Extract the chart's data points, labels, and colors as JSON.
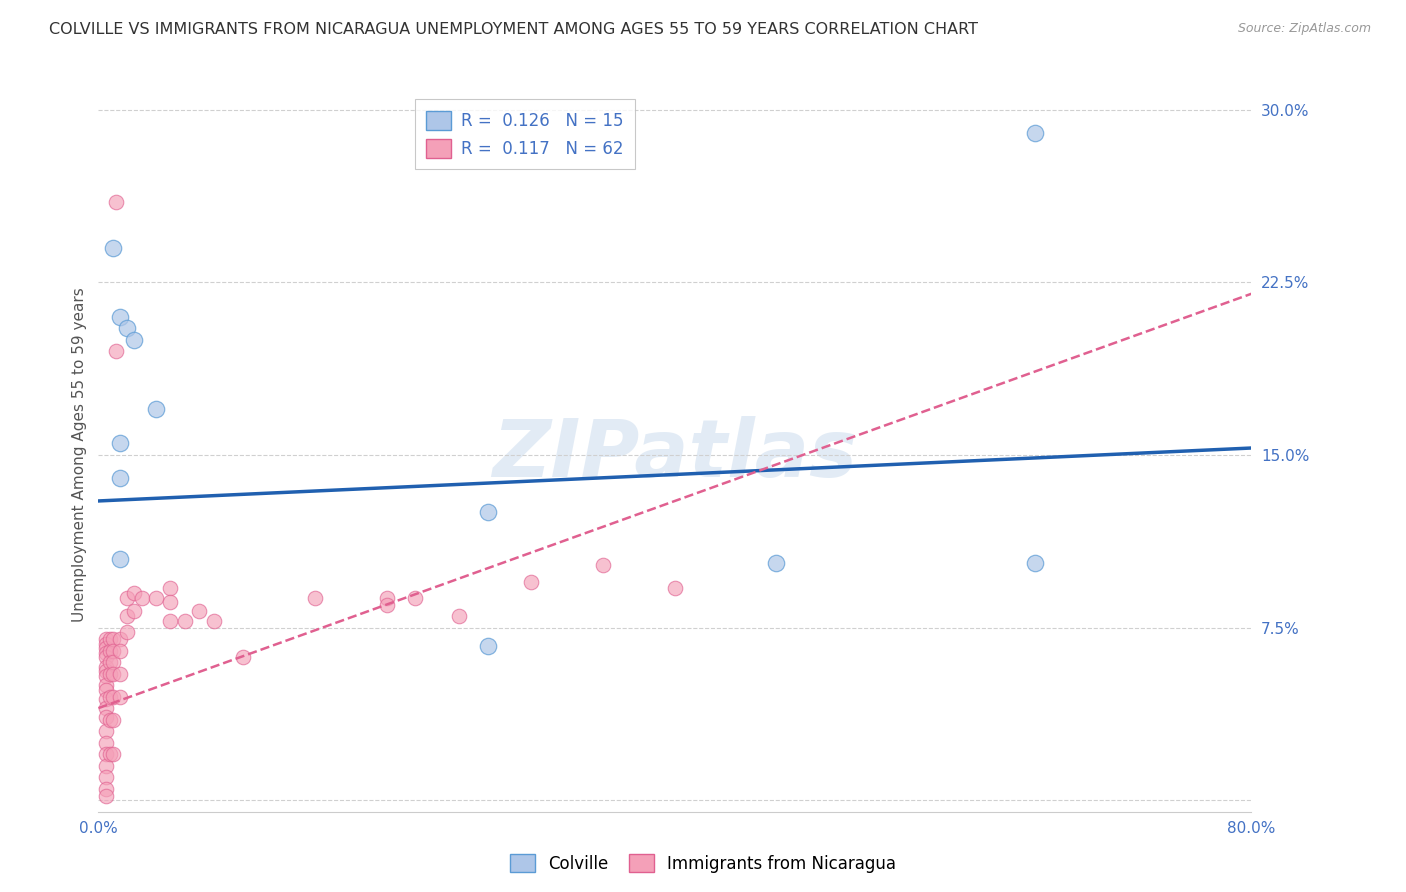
{
  "title": "COLVILLE VS IMMIGRANTS FROM NICARAGUA UNEMPLOYMENT AMONG AGES 55 TO 59 YEARS CORRELATION CHART",
  "source": "Source: ZipAtlas.com",
  "ylabel": "Unemployment Among Ages 55 to 59 years",
  "xlim": [
    0,
    0.8
  ],
  "ylim": [
    -0.005,
    0.305
  ],
  "yticks": [
    0.0,
    0.075,
    0.15,
    0.225,
    0.3
  ],
  "ytick_labels": [
    "",
    "7.5%",
    "15.0%",
    "22.5%",
    "30.0%"
  ],
  "xtick_positions": [
    0.0,
    0.1,
    0.2,
    0.3,
    0.4,
    0.5,
    0.6,
    0.7,
    0.8
  ],
  "xtick_labels": [
    "0.0%",
    "",
    "",
    "",
    "",
    "",
    "",
    "",
    "80.0%"
  ],
  "background_color": "#ffffff",
  "grid_color": "#d0d0d0",
  "watermark": "ZIPatlas",
  "colville_color": "#aec6e8",
  "nicaragua_color": "#f4a0b8",
  "colville_edge": "#5b9bd5",
  "nicaragua_edge": "#e06090",
  "colville_trend_color": "#2060b0",
  "nicaragua_trend_color": "#e06090",
  "colville_points_x": [
    0.01,
    0.015,
    0.02,
    0.025,
    0.04,
    0.015,
    0.015,
    0.015,
    0.27,
    0.65,
    0.65,
    0.27,
    0.47
  ],
  "colville_points_y": [
    0.24,
    0.21,
    0.205,
    0.2,
    0.17,
    0.155,
    0.14,
    0.105,
    0.125,
    0.103,
    0.29,
    0.067,
    0.103
  ],
  "nicaragua_points_x": [
    0.005,
    0.005,
    0.005,
    0.005,
    0.005,
    0.005,
    0.005,
    0.005,
    0.005,
    0.005,
    0.005,
    0.005,
    0.005,
    0.005,
    0.005,
    0.005,
    0.005,
    0.005,
    0.005,
    0.005,
    0.008,
    0.008,
    0.008,
    0.008,
    0.008,
    0.008,
    0.008,
    0.01,
    0.01,
    0.01,
    0.01,
    0.01,
    0.01,
    0.01,
    0.015,
    0.015,
    0.015,
    0.015,
    0.02,
    0.02,
    0.02,
    0.025,
    0.025,
    0.03,
    0.04,
    0.05,
    0.05,
    0.05,
    0.06,
    0.07,
    0.08,
    0.1,
    0.15,
    0.2,
    0.22,
    0.25,
    0.3,
    0.35,
    0.4,
    0.012,
    0.012,
    0.2
  ],
  "nicaragua_points_y": [
    0.07,
    0.068,
    0.066,
    0.064,
    0.062,
    0.058,
    0.056,
    0.054,
    0.05,
    0.048,
    0.044,
    0.04,
    0.036,
    0.03,
    0.025,
    0.02,
    0.015,
    0.01,
    0.005,
    0.002,
    0.07,
    0.065,
    0.06,
    0.055,
    0.045,
    0.035,
    0.02,
    0.07,
    0.065,
    0.06,
    0.055,
    0.045,
    0.035,
    0.02,
    0.07,
    0.065,
    0.055,
    0.045,
    0.088,
    0.08,
    0.073,
    0.09,
    0.082,
    0.088,
    0.088,
    0.092,
    0.086,
    0.078,
    0.078,
    0.082,
    0.078,
    0.062,
    0.088,
    0.088,
    0.088,
    0.08,
    0.095,
    0.102,
    0.092,
    0.26,
    0.195,
    0.085
  ],
  "colville_trend_x": [
    0.0,
    0.8
  ],
  "colville_trend_y": [
    0.13,
    0.153
  ],
  "nicaragua_trend_x": [
    0.0,
    0.8
  ],
  "nicaragua_trend_y": [
    0.04,
    0.22
  ],
  "title_fontsize": 11.5,
  "axis_label_fontsize": 11,
  "tick_fontsize": 11,
  "legend_fontsize": 12
}
